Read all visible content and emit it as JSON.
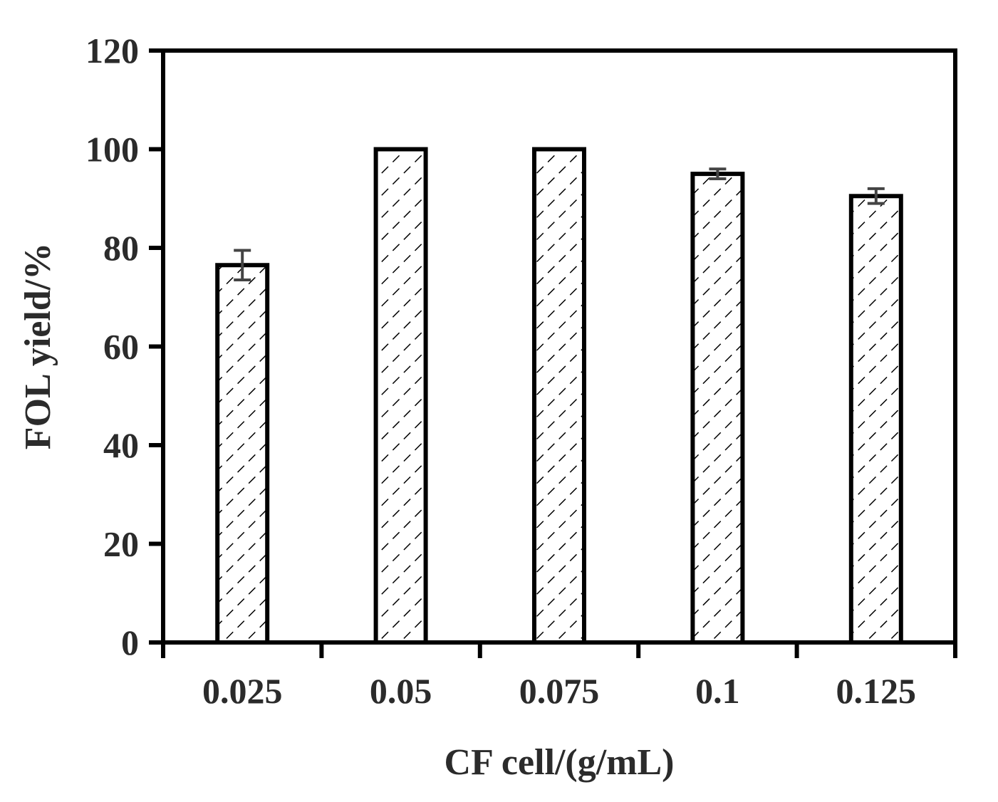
{
  "chart_data": {
    "type": "bar",
    "categories": [
      "0.025",
      "0.05",
      "0.075",
      "0.1",
      "0.125"
    ],
    "values": [
      76.5,
      100,
      100,
      95,
      90.5
    ],
    "errors": [
      3,
      0,
      0,
      1,
      1.5
    ],
    "xlabel": "CF cell/(g/mL)",
    "ylabel": "FOL yield/%",
    "ylim": [
      0,
      120
    ],
    "yticks": [
      "0",
      "20",
      "40",
      "60",
      "80",
      "100",
      "120"
    ],
    "bar_fill": "hatched",
    "grid": false,
    "legend": "none",
    "colors": {
      "axis": "#000000",
      "bar_edge": "#000000",
      "hatch": "#000000",
      "error_bar": "#444444",
      "text": "#2b2b2b"
    }
  }
}
